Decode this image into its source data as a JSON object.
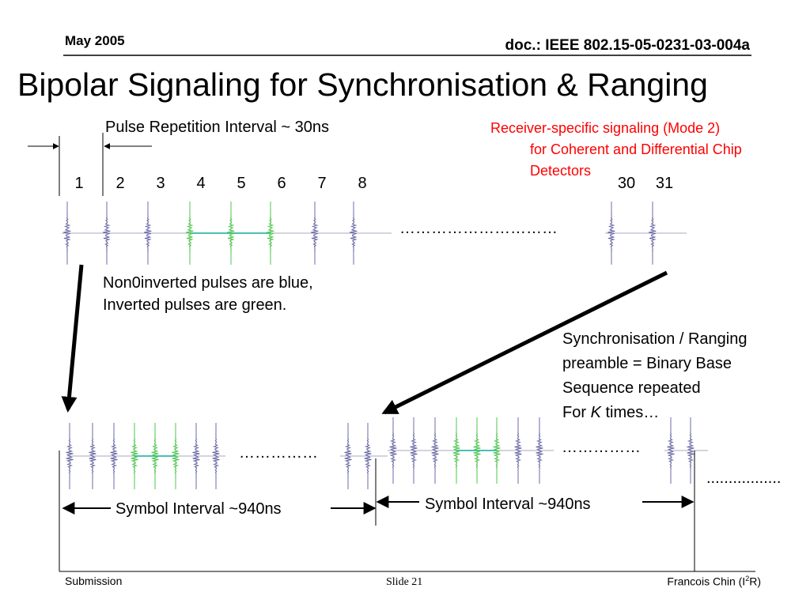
{
  "header": {
    "date": "May 2005",
    "doc": "doc.: IEEE 802.15-05-0231-03-004a"
  },
  "title": "Bipolar Signaling for Synchronisation & Ranging",
  "pulse_interval": "Pulse Repetition Interval ~ 30ns",
  "mode_note": [
    "Receiver-specific signaling (Mode 2)",
    "for Coherent and Differential Chip",
    "Detectors"
  ],
  "pulse_numbers": [
    "1",
    "2",
    "3",
    "4",
    "5",
    "6",
    "7",
    "8",
    "30",
    "31"
  ],
  "top_dots": "…………………………",
  "legend": [
    "Non0inverted pulses are blue,",
    "Inverted pulses are green."
  ],
  "preamble": [
    "Synchronisation / Ranging",
    "preamble = Binary Base",
    "Sequence repeated"
  ],
  "preamble_last": {
    "prefix": "For ",
    "italic": "K",
    "suffix": " times…"
  },
  "bottom_dots": [
    "……………",
    "……………",
    "................."
  ],
  "symbol_interval": [
    "Symbol Interval ~940ns",
    "Symbol Interval ~940ns"
  ],
  "footer": {
    "left": "Submission",
    "center": "Slide 21",
    "right_prefix": "Francois Chin (I",
    "right_sup": "2",
    "right_suffix": "R)"
  }
}
